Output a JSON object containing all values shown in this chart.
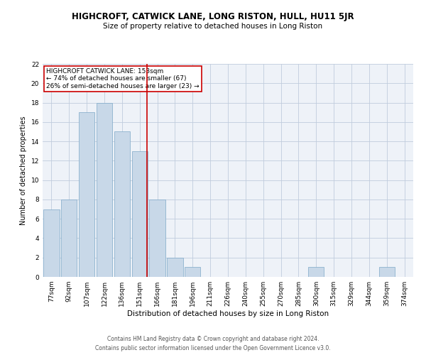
{
  "title": "HIGHCROFT, CATWICK LANE, LONG RISTON, HULL, HU11 5JR",
  "subtitle": "Size of property relative to detached houses in Long Riston",
  "xlabel": "Distribution of detached houses by size in Long Riston",
  "ylabel": "Number of detached properties",
  "categories": [
    "77sqm",
    "92sqm",
    "107sqm",
    "122sqm",
    "136sqm",
    "151sqm",
    "166sqm",
    "181sqm",
    "196sqm",
    "211sqm",
    "226sqm",
    "240sqm",
    "255sqm",
    "270sqm",
    "285sqm",
    "300sqm",
    "315sqm",
    "329sqm",
    "344sqm",
    "359sqm",
    "374sqm"
  ],
  "values": [
    7,
    8,
    17,
    18,
    15,
    13,
    8,
    2,
    1,
    0,
    0,
    0,
    0,
    0,
    0,
    1,
    0,
    0,
    0,
    1,
    0
  ],
  "bar_color": "#c8d8e8",
  "bar_edge_color": "#7da8c8",
  "grid_color": "#c0ccdd",
  "background_color": "#eef2f8",
  "vline_x": 5.42,
  "vline_color": "#cc0000",
  "annotation_text": "HIGHCROFT CATWICK LANE: 153sqm\n← 74% of detached houses are smaller (67)\n26% of semi-detached houses are larger (23) →",
  "annotation_box_color": "#cc0000",
  "footer_line1": "Contains HM Land Registry data © Crown copyright and database right 2024.",
  "footer_line2": "Contains public sector information licensed under the Open Government Licence v3.0.",
  "ylim": [
    0,
    22
  ],
  "yticks": [
    0,
    2,
    4,
    6,
    8,
    10,
    12,
    14,
    16,
    18,
    20,
    22
  ],
  "title_fontsize": 8.5,
  "subtitle_fontsize": 7.5,
  "xlabel_fontsize": 7.5,
  "ylabel_fontsize": 7.0,
  "tick_fontsize": 6.5,
  "annotation_fontsize": 6.5,
  "footer_fontsize": 5.5
}
